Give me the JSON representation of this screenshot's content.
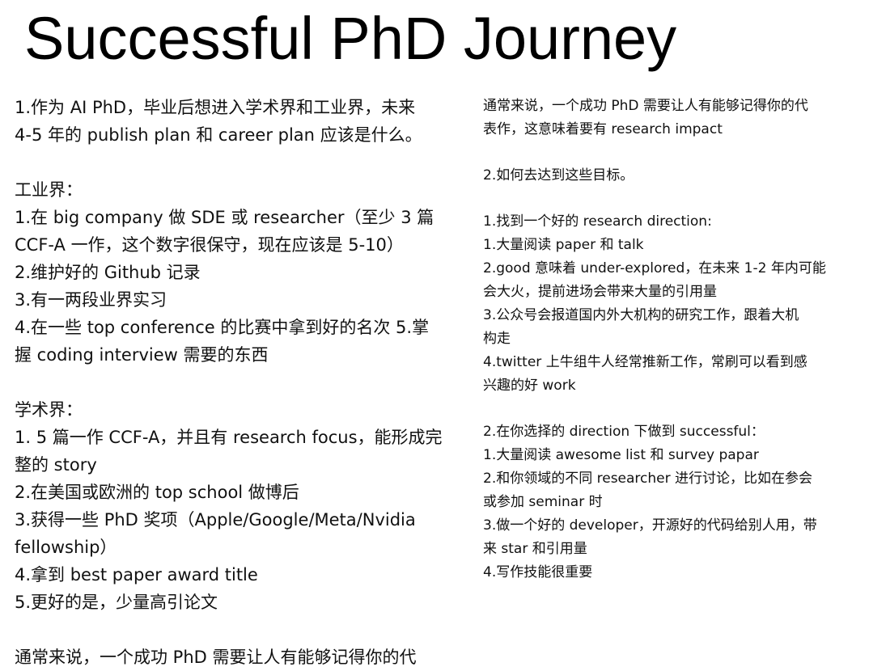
{
  "title": "Successful PhD Journey",
  "left_column": {
    "intro": [
      "1.作为 AI PhD，毕业后想进入学术界和工业界，未来",
      "4-5 年的 publish plan 和 career plan 应该是什么。"
    ],
    "industry": {
      "heading": "工业界：",
      "lines": [
        "1.在 big company 做 SDE 或 researcher（至少 3 篇",
        "CCF-A 一作，这个数字很保守，现在应该是 5-10）",
        "2.维护好的 Github 记录",
        "3.有一两段业界实习",
        "4.在一些 top conference 的比赛中拿到好的名次 5.掌",
        "握 coding interview 需要的东西"
      ]
    },
    "academia": {
      "heading": "学术界：",
      "lines": [
        "1. 5 篇一作 CCF-A，并且有 research focus，能形成完",
        "整的 story",
        "2.在美国或欧洲的 top school 做博后",
        "3.获得一些 PhD 奖项（Apple/Google/Meta/Nvidia",
        "fellowship）",
        "4.拿到 best paper award title",
        "5.更好的是，少量高引论文"
      ]
    },
    "closing": "通常来说，一个成功 PhD 需要让人有能够记得你的代"
  },
  "right_column": {
    "closing": [
      "通常来说，一个成功 PhD 需要让人有能够记得你的代",
      "表作，这意味着要有 research impact"
    ],
    "question2": "2.如何去达到这些目标。",
    "direction": {
      "heading": "1.找到一个好的 research direction:",
      "lines": [
        "1.大量阅读 paper 和 talk",
        "2.good 意味着 under-explored，在未来 1-2 年内可能",
        "会大火，提前进场会带来大量的引用量",
        "3.公众号会报道国内外大机构的研究工作，跟着大机",
        "构走",
        "4.twitter 上牛组牛人经常推新工作，常刷可以看到感",
        "兴趣的好 work"
      ]
    },
    "successful": {
      "heading": "2.在你选择的 direction 下做到 successful：",
      "lines": [
        "1.大量阅读 awesome list 和 survey papar",
        "2.和你领域的不同 researcher 进行讨论，比如在参会",
        "或参加 seminar 时",
        "3.做一个好的 developer，开源好的代码给别人用，带",
        "来 star 和引用量",
        "4.写作技能很重要"
      ]
    }
  }
}
